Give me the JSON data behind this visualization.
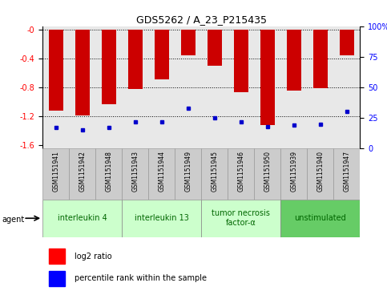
{
  "title": "GDS5262 / A_23_P215435",
  "samples": [
    "GSM1151941",
    "GSM1151942",
    "GSM1151948",
    "GSM1151943",
    "GSM1151944",
    "GSM1151949",
    "GSM1151945",
    "GSM1151946",
    "GSM1151950",
    "GSM1151939",
    "GSM1151940",
    "GSM1151947"
  ],
  "log2_ratio": [
    -1.13,
    -1.19,
    -1.03,
    -0.82,
    -0.69,
    -0.36,
    -0.5,
    -0.87,
    -1.33,
    -0.85,
    -0.81,
    -0.35
  ],
  "percentile": [
    17,
    15,
    17,
    22,
    22,
    33,
    25,
    22,
    18,
    19,
    20,
    30
  ],
  "ylim_left": [
    -1.65,
    0.05
  ],
  "ylim_right": [
    0,
    100
  ],
  "yticks_left": [
    -1.6,
    -1.2,
    -0.8,
    -0.4,
    0.0
  ],
  "yticks_right": [
    0,
    25,
    50,
    75,
    100
  ],
  "ytick_labels_left": [
    "-1.6",
    "-1.2",
    "-0.8",
    "-0.4",
    "-0"
  ],
  "ytick_labels_right": [
    "0",
    "25",
    "50",
    "75",
    "100%"
  ],
  "groups": [
    {
      "label": "interleukin 4",
      "indices": [
        0,
        1,
        2
      ],
      "color": "#ccffcc"
    },
    {
      "label": "interleukin 13",
      "indices": [
        3,
        4,
        5
      ],
      "color": "#ccffcc"
    },
    {
      "label": "tumor necrosis\nfactor-α",
      "indices": [
        6,
        7,
        8
      ],
      "color": "#ccffcc"
    },
    {
      "label": "unstimulated",
      "indices": [
        9,
        10,
        11
      ],
      "color": "#66cc66"
    }
  ],
  "bar_color": "#cc0000",
  "percentile_color": "#0000cc",
  "bar_width": 0.55,
  "grid_color": "black",
  "legend_red_label": "log2 ratio",
  "legend_blue_label": "percentile rank within the sample",
  "agent_label": "agent",
  "bg_plot": "#e8e8e8",
  "bg_xtick": "#cccccc",
  "background_color": "#ffffff"
}
